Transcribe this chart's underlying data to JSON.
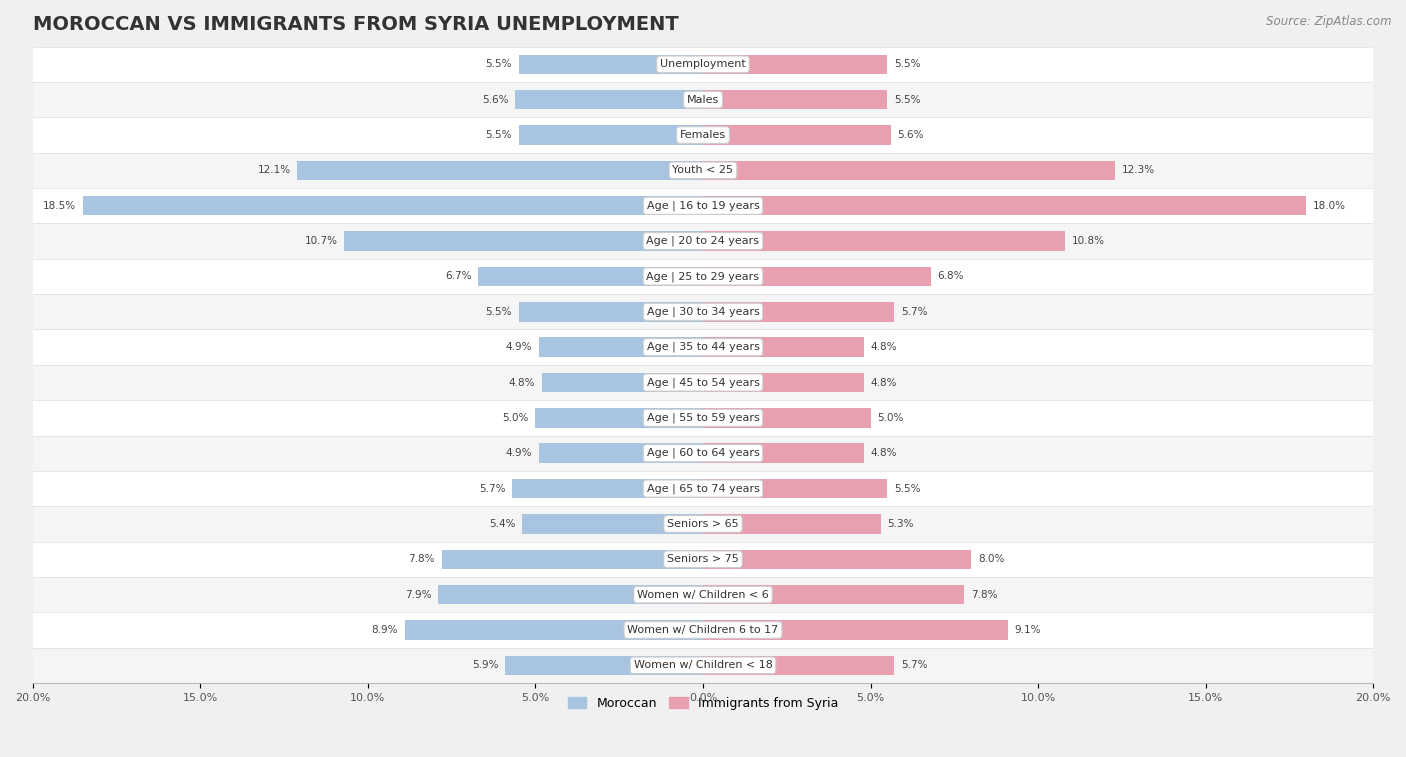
{
  "title": "MOROCCAN VS IMMIGRANTS FROM SYRIA UNEMPLOYMENT",
  "source": "Source: ZipAtlas.com",
  "categories": [
    "Unemployment",
    "Males",
    "Females",
    "Youth < 25",
    "Age | 16 to 19 years",
    "Age | 20 to 24 years",
    "Age | 25 to 29 years",
    "Age | 30 to 34 years",
    "Age | 35 to 44 years",
    "Age | 45 to 54 years",
    "Age | 55 to 59 years",
    "Age | 60 to 64 years",
    "Age | 65 to 74 years",
    "Seniors > 65",
    "Seniors > 75",
    "Women w/ Children < 6",
    "Women w/ Children 6 to 17",
    "Women w/ Children < 18"
  ],
  "moroccan": [
    5.5,
    5.6,
    5.5,
    12.1,
    18.5,
    10.7,
    6.7,
    5.5,
    4.9,
    4.8,
    5.0,
    4.9,
    5.7,
    5.4,
    7.8,
    7.9,
    8.9,
    5.9
  ],
  "syria": [
    5.5,
    5.5,
    5.6,
    12.3,
    18.0,
    10.8,
    6.8,
    5.7,
    4.8,
    4.8,
    5.0,
    4.8,
    5.5,
    5.3,
    8.0,
    7.8,
    9.1,
    5.7
  ],
  "moroccan_color": "#a8c4e0",
  "syria_color": "#e8a0b0",
  "axis_max": 20.0,
  "row_bg_even": "#f5f5f5",
  "row_bg_odd": "#ffffff",
  "title_fontsize": 14,
  "source_fontsize": 8.5,
  "label_fontsize": 8,
  "value_fontsize": 7.5,
  "legend_fontsize": 9,
  "tick_fontsize": 8
}
